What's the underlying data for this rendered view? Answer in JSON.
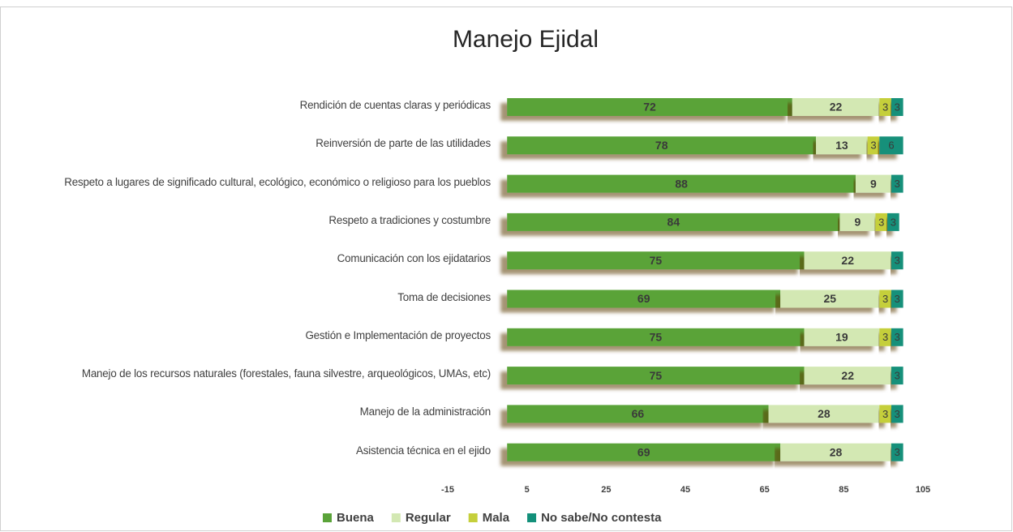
{
  "chart_data": {
    "type": "bar",
    "orientation": "horizontal",
    "stacked": true,
    "title": "Manejo Ejidal",
    "categories": [
      "Rendición de cuentas claras y periódicas",
      "Reinversión de parte de las utilidades",
      "Respeto a lugares de significado cultural, ecológico, económico o religioso para los pueblos",
      "Respeto a tradiciones y costumbre",
      "Comunicación con los ejidatarios",
      "Toma de decisiones",
      "Gestión e Implementación de proyectos",
      "Manejo de los recursos naturales (forestales, fauna silvestre, arqueológicos, UMAs, etc)",
      "Manejo de la administración",
      "Asistencia técnica en el ejido"
    ],
    "series": [
      {
        "name": "Buena",
        "color": "#5aa339",
        "values": [
          72,
          78,
          88,
          84,
          75,
          69,
          75,
          75,
          66,
          69
        ]
      },
      {
        "name": "Regular",
        "color": "#d3e8b3",
        "values": [
          22,
          13,
          9,
          9,
          22,
          25,
          19,
          22,
          28,
          28
        ]
      },
      {
        "name": "Mala",
        "color": "#c5cf3b",
        "values": [
          3,
          3,
          null,
          3,
          null,
          3,
          3,
          null,
          3,
          null
        ]
      },
      {
        "name": "No sabe/No contesta",
        "color": "#13907a",
        "values": [
          3,
          6,
          3,
          3,
          3,
          3,
          3,
          3,
          3,
          3
        ]
      }
    ],
    "xlim": [
      -15,
      105
    ],
    "xticks": [
      -15,
      5,
      25,
      45,
      65,
      85,
      105
    ],
    "legend": "bottom"
  }
}
